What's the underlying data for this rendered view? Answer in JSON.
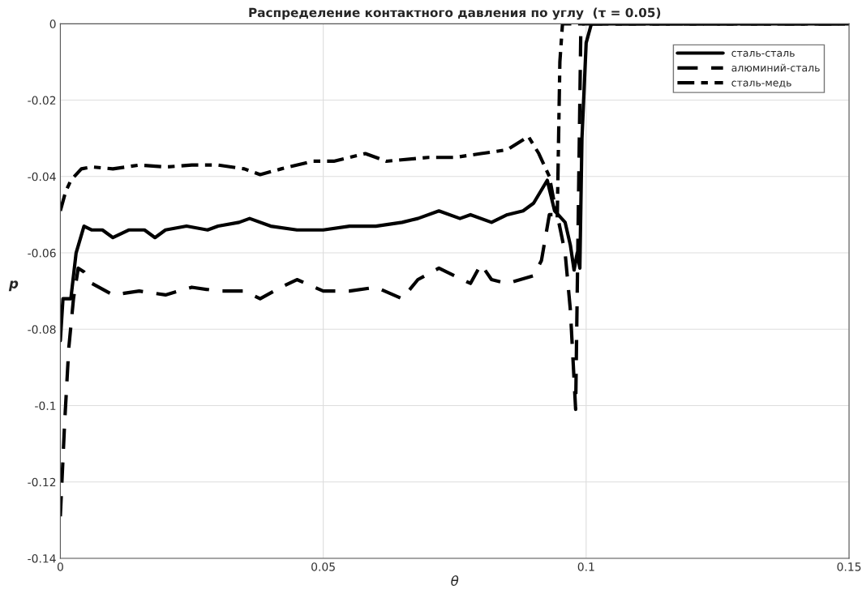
{
  "chart_data": {
    "type": "line",
    "title": "Распределение контактного давления по углу  (τ = 0.05)",
    "xlabel": "θ",
    "ylabel": "p",
    "xlim": [
      0,
      0.15
    ],
    "xticks": [
      0,
      0.05,
      0.1,
      0.15
    ],
    "ylim": [
      -0.14,
      0
    ],
    "yticks": [
      -0.14,
      -0.12,
      -0.1,
      -0.08,
      -0.06,
      -0.04,
      -0.02,
      0
    ],
    "grid": true,
    "legend": "top right",
    "marker": "none",
    "series": [
      {
        "name": "сталь-сталь",
        "color": "#000000",
        "line_style": "solid",
        "x": [
          0,
          0.0005,
          0.002,
          0.003,
          0.0045,
          0.006,
          0.008,
          0.01,
          0.013,
          0.016,
          0.018,
          0.02,
          0.024,
          0.028,
          0.03,
          0.034,
          0.036,
          0.04,
          0.045,
          0.05,
          0.055,
          0.06,
          0.065,
          0.068,
          0.072,
          0.076,
          0.078,
          0.082,
          0.085,
          0.088,
          0.09,
          0.0926,
          0.094,
          0.096,
          0.097,
          0.0977,
          0.0983,
          0.0988,
          0.0992,
          0.1,
          0.101,
          0.15
        ],
        "values": [
          -0.083,
          -0.072,
          -0.072,
          -0.06,
          -0.053,
          -0.054,
          -0.054,
          -0.056,
          -0.054,
          -0.054,
          -0.056,
          -0.054,
          -0.053,
          -0.054,
          -0.053,
          -0.052,
          -0.051,
          -0.053,
          -0.054,
          -0.054,
          -0.053,
          -0.053,
          -0.052,
          -0.051,
          -0.049,
          -0.051,
          -0.05,
          -0.052,
          -0.05,
          -0.049,
          -0.047,
          -0.041,
          -0.049,
          -0.052,
          -0.058,
          -0.0645,
          -0.06,
          -0.064,
          -0.03,
          -0.005,
          0,
          0
        ]
      },
      {
        "name": "алюминий-сталь",
        "color": "#000000",
        "line_style": "dashed",
        "x": [
          0,
          0.0008,
          0.0016,
          0.0025,
          0.0034,
          0.0045,
          0.006,
          0.01,
          0.015,
          0.02,
          0.025,
          0.03,
          0.035,
          0.038,
          0.042,
          0.045,
          0.05,
          0.055,
          0.06,
          0.065,
          0.068,
          0.072,
          0.075,
          0.078,
          0.08,
          0.082,
          0.085,
          0.09,
          0.0915,
          0.093,
          0.0945,
          0.096,
          0.097,
          0.098,
          0.0985,
          0.099,
          0.15
        ],
        "values": [
          -0.129,
          -0.105,
          -0.085,
          -0.072,
          -0.064,
          -0.065,
          -0.068,
          -0.071,
          -0.07,
          -0.071,
          -0.069,
          -0.07,
          -0.07,
          -0.072,
          -0.069,
          -0.067,
          -0.07,
          -0.07,
          -0.069,
          -0.072,
          -0.067,
          -0.064,
          -0.066,
          -0.068,
          -0.063,
          -0.067,
          -0.068,
          -0.066,
          -0.062,
          -0.05,
          -0.05,
          -0.06,
          -0.075,
          -0.101,
          -0.05,
          0,
          0
        ]
      },
      {
        "name": "сталь-медь",
        "color": "#000000",
        "line_style": "dashdot",
        "x": [
          0,
          0.001,
          0.002,
          0.004,
          0.006,
          0.01,
          0.015,
          0.02,
          0.025,
          0.03,
          0.035,
          0.038,
          0.042,
          0.048,
          0.052,
          0.058,
          0.062,
          0.07,
          0.075,
          0.08,
          0.085,
          0.089,
          0.091,
          0.093,
          0.0945,
          0.095,
          0.0955,
          0.15
        ],
        "values": [
          -0.049,
          -0.044,
          -0.041,
          -0.038,
          -0.0375,
          -0.038,
          -0.037,
          -0.0375,
          -0.037,
          -0.037,
          -0.038,
          -0.0395,
          -0.038,
          -0.036,
          -0.036,
          -0.034,
          -0.036,
          -0.035,
          -0.035,
          -0.034,
          -0.033,
          -0.0295,
          -0.034,
          -0.04,
          -0.051,
          -0.01,
          0,
          0
        ]
      }
    ]
  }
}
